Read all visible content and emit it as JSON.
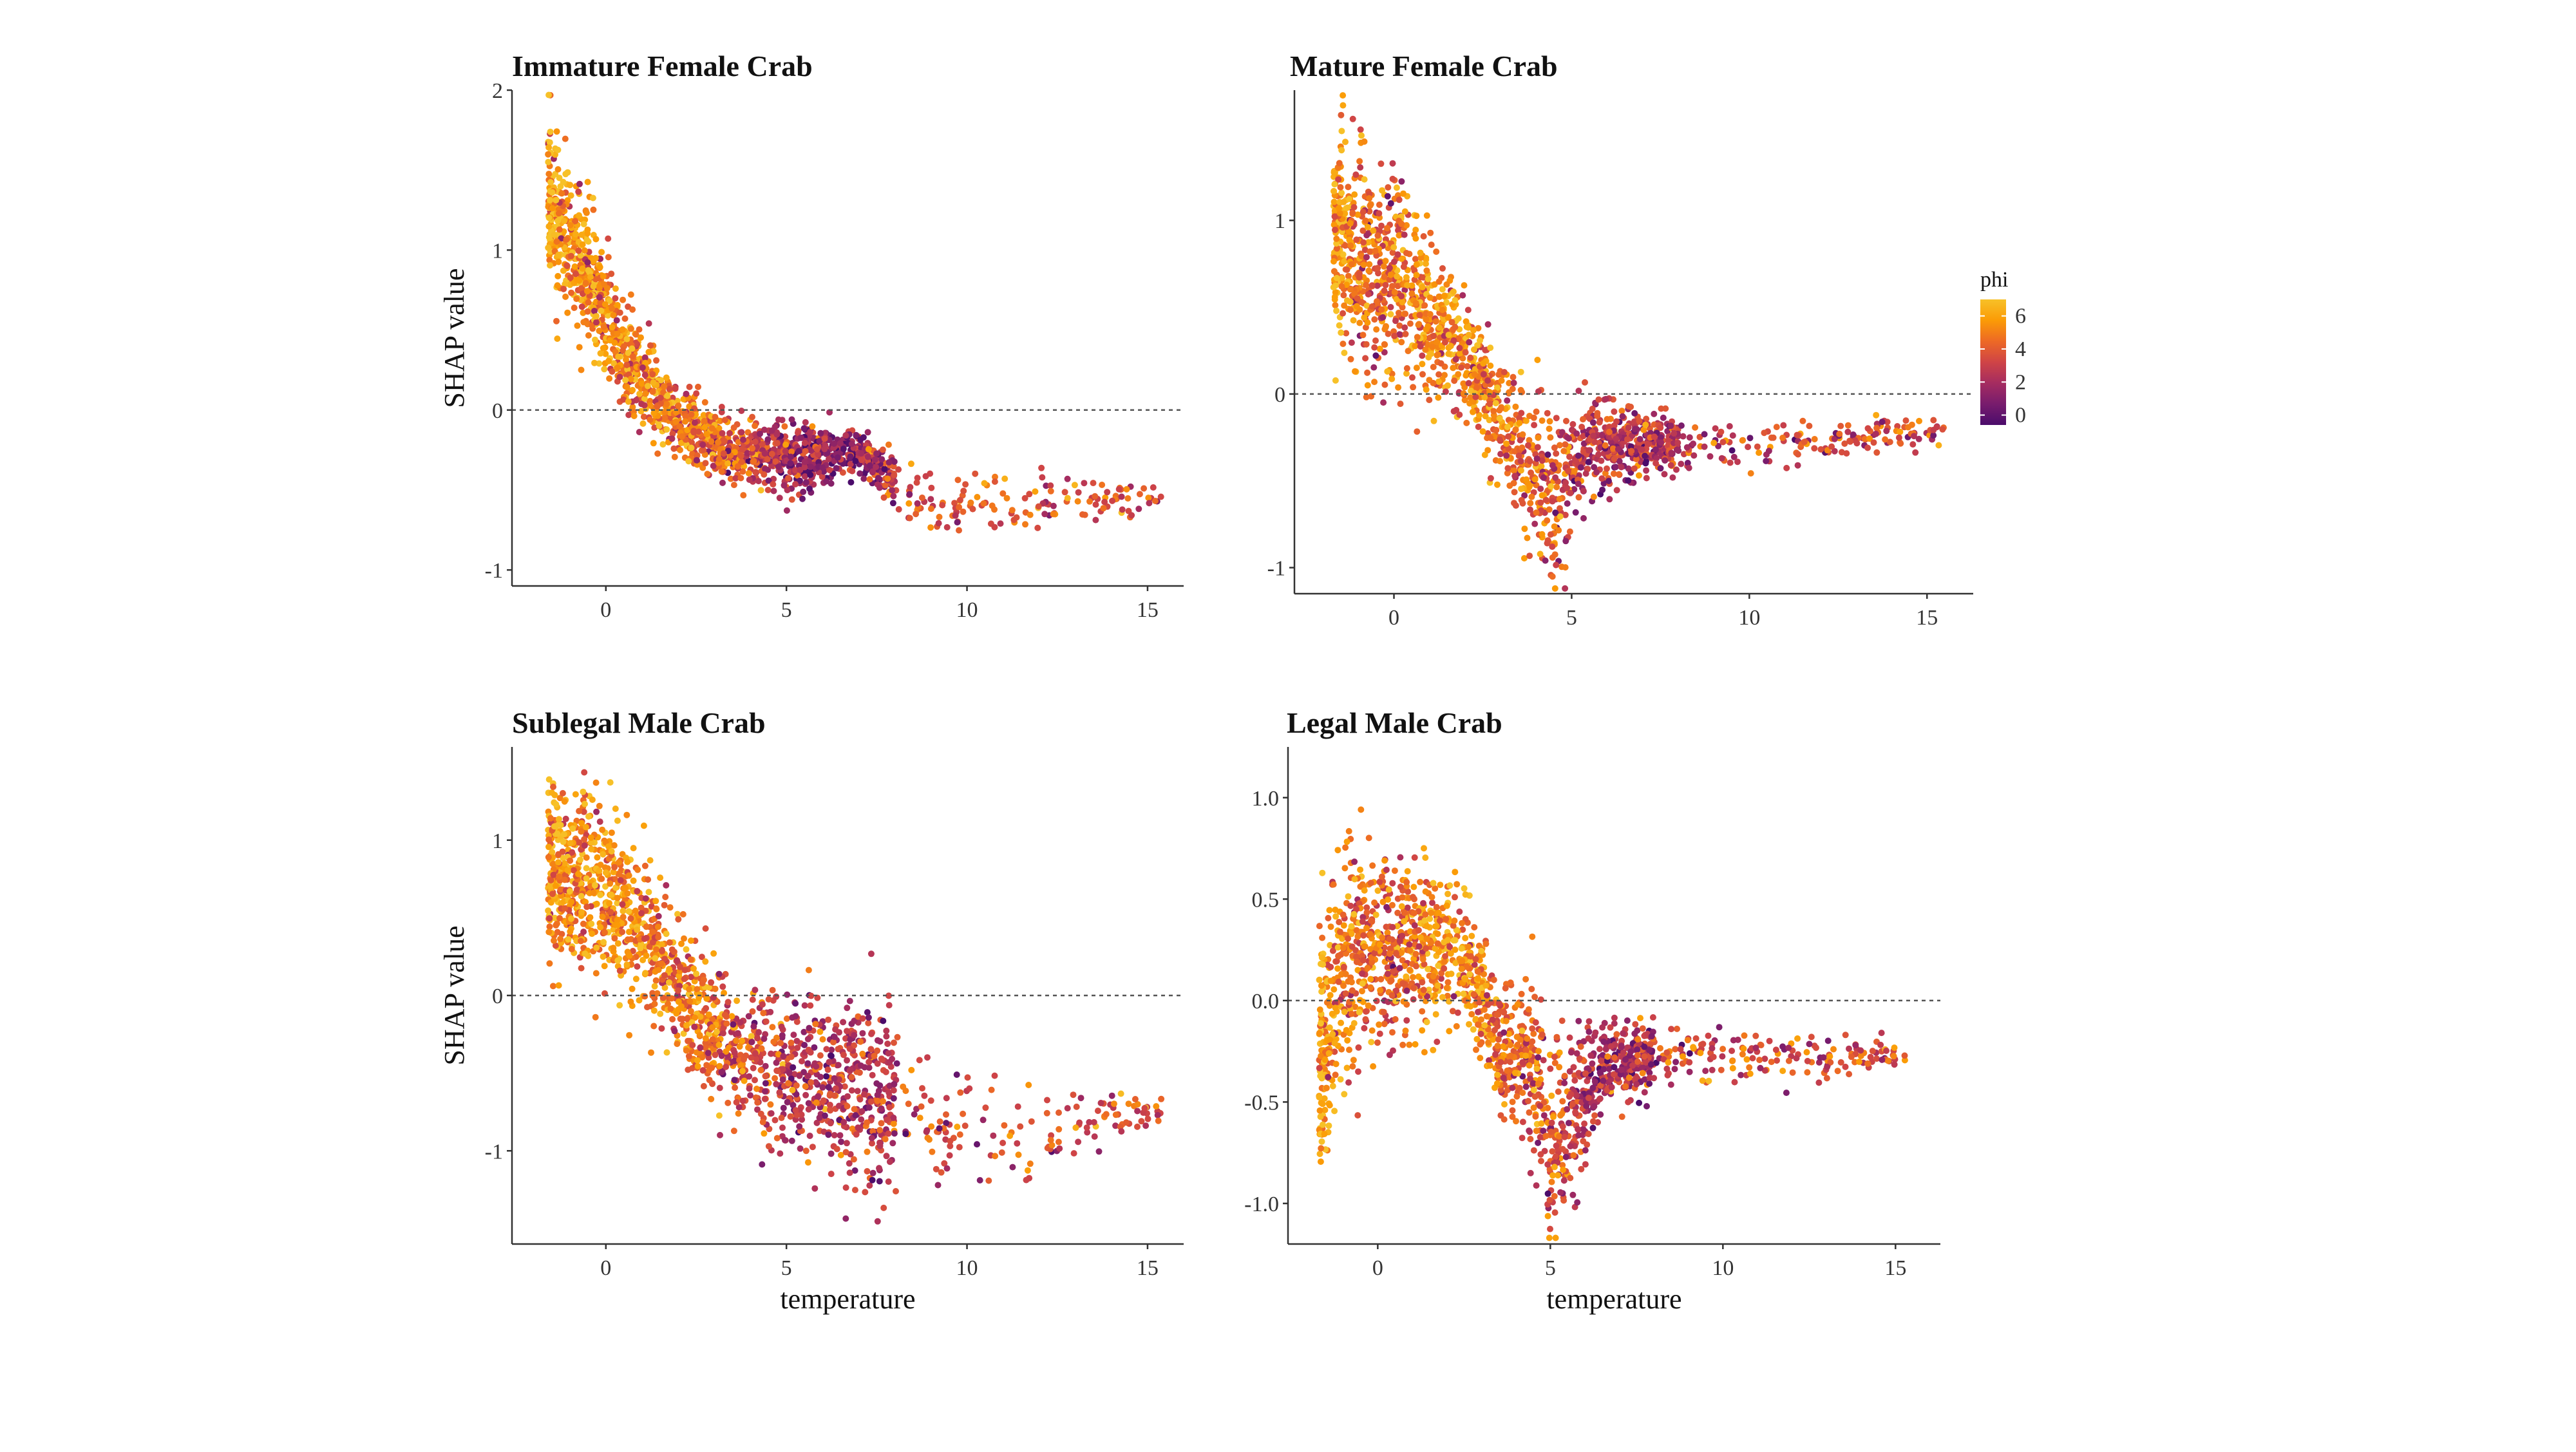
{
  "chart_data": [
    {
      "type": "scatter",
      "title": "Immature Female Crab",
      "xlabel": "",
      "ylabel": "SHAP value",
      "xlim": [
        -2.6,
        16
      ],
      "ylim": [
        -1.1,
        2.0
      ],
      "x_ticks": [
        0,
        5,
        10,
        15
      ],
      "y_ticks": [
        -1,
        0,
        1,
        2
      ],
      "y_tick_labels": [
        "-1",
        "0",
        "1",
        "2"
      ],
      "zero_line": true,
      "color_variable": "phi",
      "trend": [
        {
          "x": -1.6,
          "y": 1.3,
          "sd": 0.25,
          "phi": 6.0
        },
        {
          "x": -0.5,
          "y": 0.85,
          "sd": 0.22,
          "phi": 5.5
        },
        {
          "x": 0.5,
          "y": 0.35,
          "sd": 0.18,
          "phi": 5.0
        },
        {
          "x": 1.5,
          "y": 0.05,
          "sd": 0.12,
          "phi": 5.0
        },
        {
          "x": 2.5,
          "y": -0.15,
          "sd": 0.1,
          "phi": 4.5
        },
        {
          "x": 3.5,
          "y": -0.25,
          "sd": 0.1,
          "phi": 4.0
        },
        {
          "x": 5.0,
          "y": -0.3,
          "sd": 0.12,
          "phi": 2.0
        },
        {
          "x": 7.0,
          "y": -0.25,
          "sd": 0.06,
          "phi": 1.5
        },
        {
          "x": 9.0,
          "y": -0.6,
          "sd": 0.1,
          "phi": 3.5
        },
        {
          "x": 12.0,
          "y": -0.6,
          "sd": 0.1,
          "phi": 3.5
        },
        {
          "x": 15.4,
          "y": -0.55,
          "sd": 0.05,
          "phi": 3.5
        }
      ],
      "point_count": 1800
    },
    {
      "type": "scatter",
      "title": "Mature Female Crab",
      "xlabel": "",
      "ylabel": "",
      "xlim": [
        -2.8,
        16.3
      ],
      "ylim": [
        -1.15,
        1.75
      ],
      "x_ticks": [
        0,
        5,
        10,
        15
      ],
      "y_ticks": [
        -1,
        0,
        1
      ],
      "y_tick_labels": [
        "-1",
        "0",
        "1"
      ],
      "zero_line": true,
      "color_variable": "phi",
      "trend": [
        {
          "x": -1.7,
          "y": 0.9,
          "sd": 0.25,
          "phi": 6.0
        },
        {
          "x": -0.5,
          "y": 0.75,
          "sd": 0.3,
          "phi": 4.0
        },
        {
          "x": 0.5,
          "y": 0.55,
          "sd": 0.25,
          "phi": 5.0
        },
        {
          "x": 1.5,
          "y": 0.35,
          "sd": 0.2,
          "phi": 5.5
        },
        {
          "x": 2.5,
          "y": 0.05,
          "sd": 0.15,
          "phi": 5.0
        },
        {
          "x": 3.5,
          "y": -0.35,
          "sd": 0.2,
          "phi": 4.5
        },
        {
          "x": 4.5,
          "y": -0.6,
          "sd": 0.25,
          "phi": 4.0
        },
        {
          "x": 5.5,
          "y": -0.3,
          "sd": 0.12,
          "phi": 2.5
        },
        {
          "x": 8.0,
          "y": -0.28,
          "sd": 0.07,
          "phi": 2.5
        },
        {
          "x": 11.0,
          "y": -0.28,
          "sd": 0.06,
          "phi": 3.5
        },
        {
          "x": 15.5,
          "y": -0.2,
          "sd": 0.05,
          "phi": 3.5
        }
      ],
      "point_count": 1800
    },
    {
      "type": "scatter",
      "title": "Sublegal Male Crab",
      "xlabel": "temperature",
      "ylabel": "SHAP value",
      "xlim": [
        -2.6,
        16
      ],
      "ylim": [
        -1.6,
        1.6
      ],
      "x_ticks": [
        0,
        5,
        10,
        15
      ],
      "y_ticks": [
        -1,
        0,
        1
      ],
      "y_tick_labels": [
        "-1",
        "0",
        "1"
      ],
      "zero_line": true,
      "color_variable": "phi",
      "trend": [
        {
          "x": -1.6,
          "y": 0.8,
          "sd": 0.25,
          "phi": 6.0
        },
        {
          "x": -0.5,
          "y": 0.75,
          "sd": 0.3,
          "phi": 5.0
        },
        {
          "x": 0.5,
          "y": 0.55,
          "sd": 0.25,
          "phi": 5.5
        },
        {
          "x": 1.5,
          "y": 0.25,
          "sd": 0.2,
          "phi": 5.0
        },
        {
          "x": 2.5,
          "y": -0.15,
          "sd": 0.2,
          "phi": 5.0
        },
        {
          "x": 3.5,
          "y": -0.35,
          "sd": 0.2,
          "phi": 4.0
        },
        {
          "x": 5.0,
          "y": -0.5,
          "sd": 0.25,
          "phi": 2.5
        },
        {
          "x": 7.0,
          "y": -0.6,
          "sd": 0.3,
          "phi": 2.5
        },
        {
          "x": 9.5,
          "y": -0.9,
          "sd": 0.2,
          "phi": 3.5
        },
        {
          "x": 12.5,
          "y": -0.85,
          "sd": 0.15,
          "phi": 3.5
        },
        {
          "x": 15.4,
          "y": -0.7,
          "sd": 0.05,
          "phi": 3.5
        }
      ],
      "point_count": 1800
    },
    {
      "type": "scatter",
      "title": "Legal Male Crab",
      "xlabel": "temperature",
      "ylabel": "",
      "xlim": [
        -2.6,
        16.3
      ],
      "ylim": [
        -1.2,
        1.25
      ],
      "x_ticks": [
        0,
        5,
        10,
        15
      ],
      "y_ticks": [
        -1.0,
        -0.5,
        0.0,
        0.5,
        1.0
      ],
      "y_tick_labels": [
        "-1.0",
        "-0.5",
        "0.0",
        "0.5",
        "1.0"
      ],
      "zero_line": true,
      "color_variable": "phi",
      "trend": [
        {
          "x": -1.7,
          "y": -0.3,
          "sd": 0.3,
          "phi": 6.0
        },
        {
          "x": -1.2,
          "y": 0.1,
          "sd": 0.3,
          "phi": 5.0
        },
        {
          "x": -0.5,
          "y": 0.25,
          "sd": 0.25,
          "phi": 4.5
        },
        {
          "x": 0.5,
          "y": 0.25,
          "sd": 0.2,
          "phi": 4.0
        },
        {
          "x": 1.5,
          "y": 0.3,
          "sd": 0.2,
          "phi": 5.5
        },
        {
          "x": 2.5,
          "y": 0.2,
          "sd": 0.15,
          "phi": 5.5
        },
        {
          "x": 3.5,
          "y": -0.2,
          "sd": 0.15,
          "phi": 4.5
        },
        {
          "x": 4.5,
          "y": -0.3,
          "sd": 0.2,
          "phi": 4.0
        },
        {
          "x": 5.0,
          "y": -0.75,
          "sd": 0.25,
          "phi": 4.0
        },
        {
          "x": 6.5,
          "y": -0.3,
          "sd": 0.1,
          "phi": 2.0
        },
        {
          "x": 9.5,
          "y": -0.28,
          "sd": 0.06,
          "phi": 3.5
        },
        {
          "x": 12.5,
          "y": -0.28,
          "sd": 0.06,
          "phi": 3.5
        },
        {
          "x": 15.3,
          "y": -0.27,
          "sd": 0.03,
          "phi": 3.5
        }
      ],
      "point_count": 1800
    }
  ],
  "legend": {
    "title": "phi",
    "range": [
      -0.6,
      7.0
    ],
    "ticks": [
      0,
      2,
      4,
      6
    ],
    "tick_labels": [
      "0",
      "2",
      "4",
      "6"
    ],
    "colors": [
      "#4b0c6b",
      "#781c6d",
      "#a52c60",
      "#cf4446",
      "#ed6925",
      "#fb9b06",
      "#f7c128"
    ]
  }
}
